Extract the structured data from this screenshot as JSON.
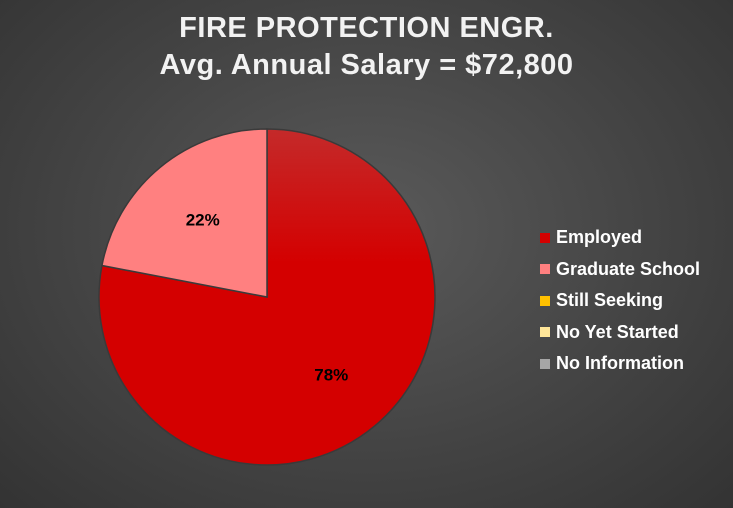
{
  "chart_data": {
    "type": "pie",
    "title": "FIRE PROTECTION ENGR.",
    "subtitle": "Avg. Annual Salary = $72,800",
    "series": [
      {
        "name": "Employed",
        "value": 78,
        "label": "78%",
        "color": "#d40000"
      },
      {
        "name": "Graduate School",
        "value": 22,
        "label": "22%",
        "color": "#ff8080"
      },
      {
        "name": "Still Seeking",
        "value": 0,
        "label": "",
        "color": "#ffc000"
      },
      {
        "name": "No Yet Started",
        "value": 0,
        "label": "",
        "color": "#ffe699"
      },
      {
        "name": "No Information",
        "value": 0,
        "label": "",
        "color": "#a6a6a6"
      }
    ],
    "legend_position": "right"
  }
}
